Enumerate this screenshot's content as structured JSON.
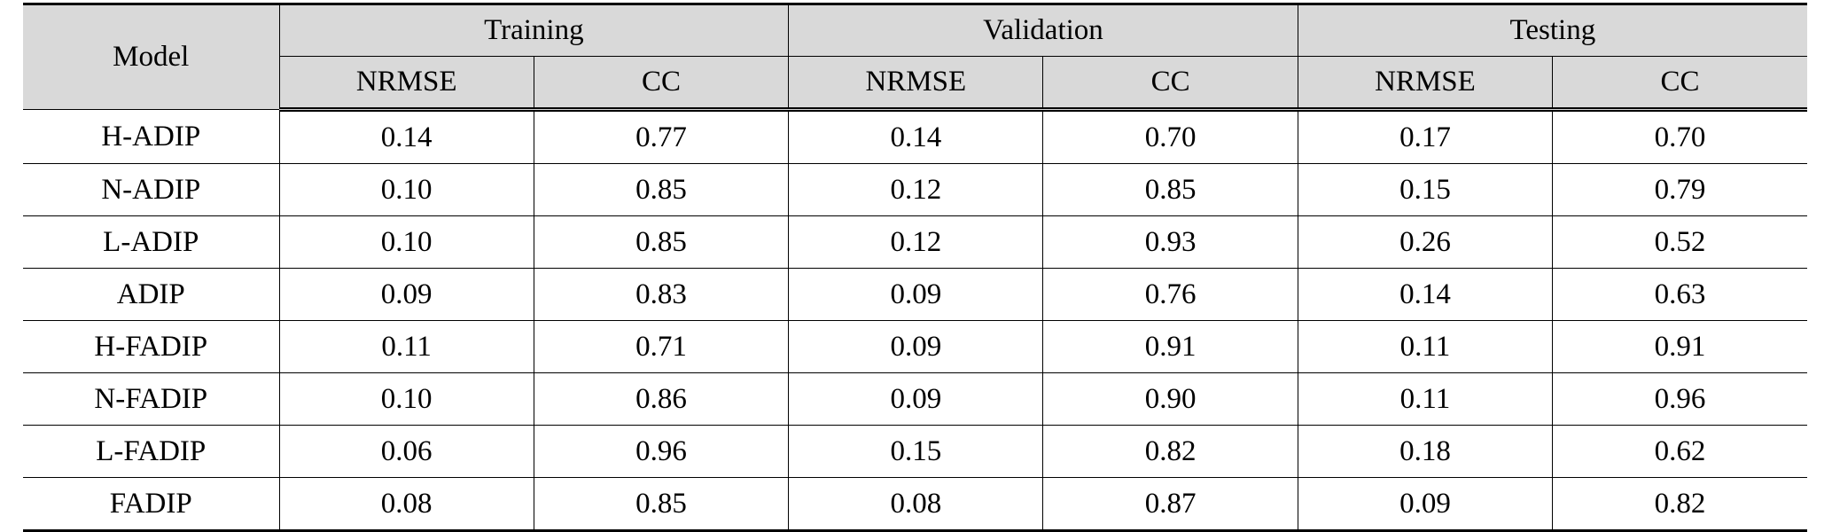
{
  "table": {
    "model_header": "Model",
    "groups": [
      "Training",
      "Validation",
      "Testing"
    ],
    "subheaders": [
      "NRMSE",
      "CC",
      "NRMSE",
      "CC",
      "NRMSE",
      "CC"
    ],
    "rows": [
      {
        "model": "H-ADIP",
        "values": [
          "0.14",
          "0.77",
          "0.14",
          "0.70",
          "0.17",
          "0.70"
        ]
      },
      {
        "model": "N-ADIP",
        "values": [
          "0.10",
          "0.85",
          "0.12",
          "0.85",
          "0.15",
          "0.79"
        ]
      },
      {
        "model": "L-ADIP",
        "values": [
          "0.10",
          "0.85",
          "0.12",
          "0.93",
          "0.26",
          "0.52"
        ]
      },
      {
        "model": "ADIP",
        "values": [
          "0.09",
          "0.83",
          "0.09",
          "0.76",
          "0.14",
          "0.63"
        ]
      },
      {
        "model": "H-FADIP",
        "values": [
          "0.11",
          "0.71",
          "0.09",
          "0.91",
          "0.11",
          "0.91"
        ]
      },
      {
        "model": "N-FADIP",
        "values": [
          "0.10",
          "0.86",
          "0.09",
          "0.90",
          "0.11",
          "0.96"
        ]
      },
      {
        "model": "L-FADIP",
        "values": [
          "0.06",
          "0.96",
          "0.15",
          "0.82",
          "0.18",
          "0.62"
        ]
      },
      {
        "model": "FADIP",
        "values": [
          "0.08",
          "0.85",
          "0.08",
          "0.87",
          "0.09",
          "0.82"
        ]
      }
    ]
  }
}
